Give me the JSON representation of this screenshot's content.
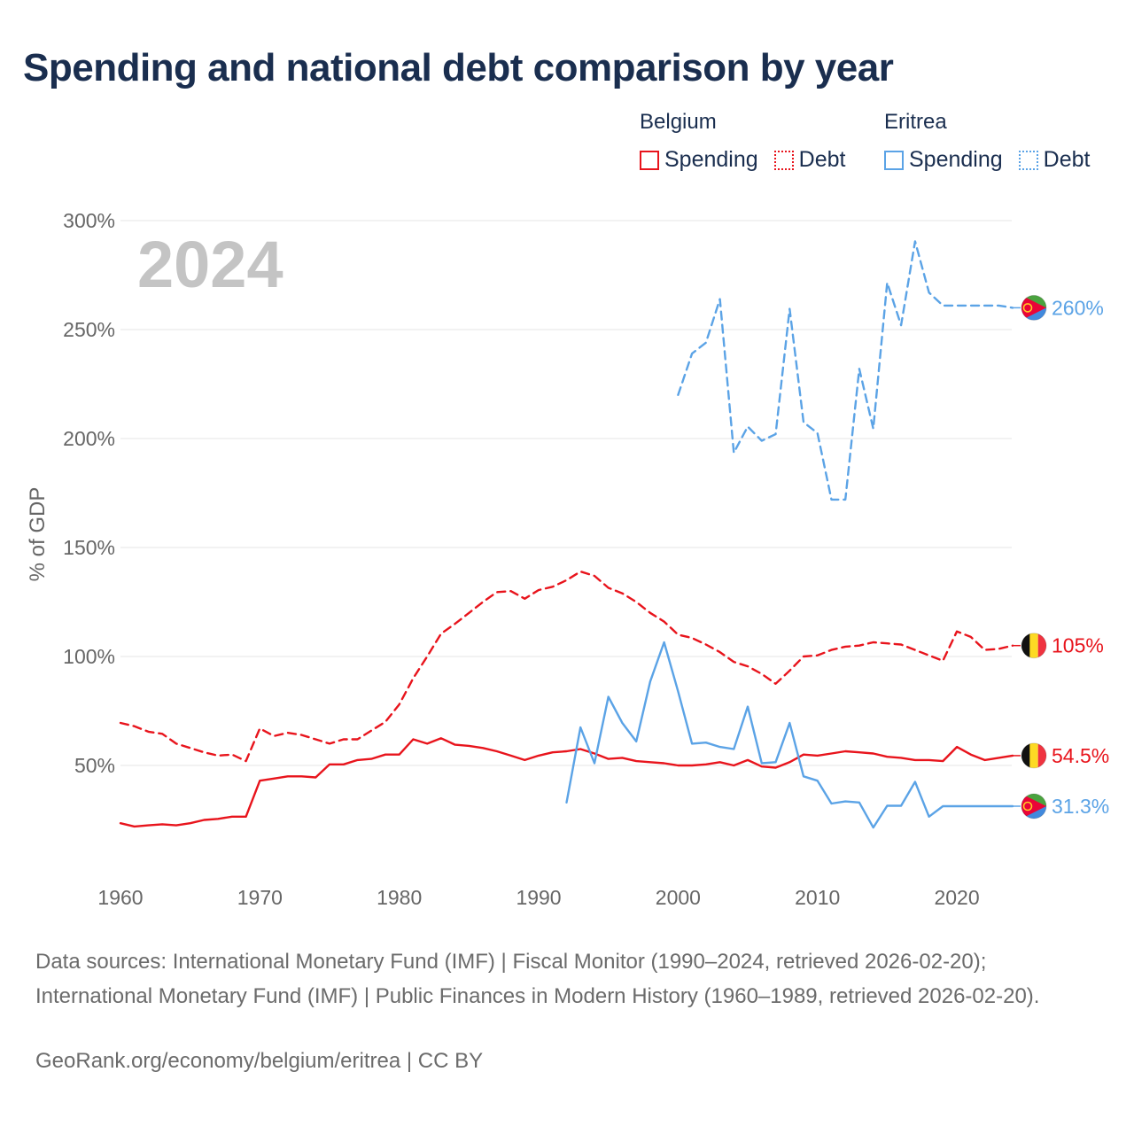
{
  "title": "Spending and national debt comparison by year",
  "legend": {
    "belgium": {
      "country": "Belgium",
      "spending": "Spending",
      "debt": "Debt"
    },
    "eritrea": {
      "country": "Eritrea",
      "spending": "Spending",
      "debt": "Debt"
    }
  },
  "colors": {
    "belgium": "#e8141c",
    "eritrea": "#5ba3e6",
    "grid": "#e4e4e4",
    "axis_text": "#666666",
    "year_watermark": "#c4c4c4"
  },
  "chart_data": {
    "type": "line",
    "year_label": "2024",
    "ylabel": "% of GDP",
    "xlim": [
      1960,
      2024
    ],
    "ylim": [
      0,
      300
    ],
    "x_ticks": [
      1960,
      1970,
      1980,
      1990,
      2000,
      2010,
      2020
    ],
    "x_tick_labels": [
      "1960",
      "1970",
      "1980",
      "1990",
      "2000",
      "2010",
      "2020"
    ],
    "y_ticks": [
      50,
      100,
      150,
      200,
      250,
      300
    ],
    "y_tick_labels": [
      "50%",
      "100%",
      "150%",
      "200%",
      "250%",
      "300%"
    ],
    "series": [
      {
        "name": "Belgium Debt",
        "country": "belgium",
        "style": "dashed",
        "x": [
          1960,
          1961,
          1962,
          1963,
          1964,
          1965,
          1966,
          1967,
          1968,
          1969,
          1970,
          1971,
          1972,
          1973,
          1974,
          1975,
          1976,
          1977,
          1978,
          1979,
          1980,
          1981,
          1982,
          1983,
          1984,
          1985,
          1986,
          1987,
          1988,
          1989,
          1990,
          1991,
          1992,
          1993,
          1994,
          1995,
          1996,
          1997,
          1998,
          1999,
          2000,
          2001,
          2002,
          2003,
          2004,
          2005,
          2006,
          2007,
          2008,
          2009,
          2010,
          2011,
          2012,
          2013,
          2014,
          2015,
          2016,
          2017,
          2018,
          2019,
          2020,
          2021,
          2022,
          2023,
          2024
        ],
        "values": [
          69.5,
          68,
          65.5,
          64.5,
          60,
          58,
          56,
          54.5,
          55,
          52,
          67,
          63.5,
          65,
          64,
          62,
          60,
          62,
          62,
          66,
          70,
          78,
          90,
          100,
          110.5,
          115,
          120,
          125,
          129.5,
          130,
          126.5,
          130.5,
          132,
          135,
          139,
          137,
          131.5,
          129,
          125,
          120,
          116,
          110,
          108.5,
          105.5,
          102,
          97.5,
          95.5,
          92,
          87.5,
          93.5,
          100,
          100.5,
          103,
          104.5,
          105,
          106.5,
          106,
          105.5,
          103,
          100.5,
          98,
          111.5,
          109,
          103,
          103.5,
          105
        ],
        "end_label": "105%",
        "end_flag": "belgium"
      },
      {
        "name": "Belgium Spending",
        "country": "belgium",
        "style": "solid",
        "x": [
          1960,
          1961,
          1962,
          1963,
          1964,
          1965,
          1966,
          1967,
          1968,
          1969,
          1970,
          1971,
          1972,
          1973,
          1974,
          1975,
          1976,
          1977,
          1978,
          1979,
          1980,
          1981,
          1982,
          1983,
          1984,
          1985,
          1986,
          1987,
          1988,
          1989,
          1990,
          1991,
          1992,
          1993,
          1994,
          1995,
          1996,
          1997,
          1998,
          1999,
          2000,
          2001,
          2002,
          2003,
          2004,
          2005,
          2006,
          2007,
          2008,
          2009,
          2010,
          2011,
          2012,
          2013,
          2014,
          2015,
          2016,
          2017,
          2018,
          2019,
          2020,
          2021,
          2022,
          2023,
          2024
        ],
        "values": [
          23.5,
          22,
          22.5,
          23,
          22.5,
          23.5,
          25,
          25.5,
          26.5,
          26.5,
          43,
          44,
          45,
          45,
          44.5,
          50.5,
          50.5,
          52.5,
          53,
          55,
          55,
          62,
          60,
          62.5,
          59.5,
          59,
          58,
          56.5,
          54.5,
          52.5,
          54.5,
          56,
          56.5,
          57.5,
          55.5,
          53,
          53.5,
          52,
          51.5,
          51,
          50,
          50,
          50.5,
          51.5,
          50,
          52.5,
          49.5,
          49,
          51.5,
          55,
          54.5,
          55.5,
          56.5,
          56,
          55.5,
          54,
          53.5,
          52.5,
          52.5,
          52,
          58.5,
          55,
          52.5,
          53.5,
          54.5
        ],
        "end_label": "54.5%",
        "end_flag": "belgium"
      },
      {
        "name": "Eritrea Debt",
        "country": "eritrea",
        "style": "dashed",
        "x": [
          2000,
          2001,
          2002,
          2003,
          2004,
          2005,
          2006,
          2007,
          2008,
          2009,
          2010,
          2011,
          2012,
          2013,
          2014,
          2015,
          2016,
          2017,
          2018,
          2019,
          2020,
          2021,
          2022,
          2023,
          2024
        ],
        "values": [
          220,
          239,
          244,
          264,
          193.5,
          205.5,
          199,
          202,
          259.5,
          207.5,
          202.5,
          172,
          172,
          232,
          204.5,
          271.5,
          252,
          290.5,
          267,
          261,
          261,
          261,
          261,
          261,
          260
        ],
        "end_label": "260%",
        "end_flag": "eritrea"
      },
      {
        "name": "Eritrea Spending",
        "country": "eritrea",
        "style": "solid",
        "x": [
          1992,
          1993,
          1994,
          1995,
          1996,
          1997,
          1998,
          1999,
          2000,
          2001,
          2002,
          2003,
          2004,
          2005,
          2006,
          2007,
          2008,
          2009,
          2010,
          2011,
          2012,
          2013,
          2014,
          2015,
          2016,
          2017,
          2018,
          2019,
          2020,
          2021,
          2022,
          2023,
          2024
        ],
        "values": [
          33,
          67.5,
          51,
          81.5,
          69.5,
          61,
          88.5,
          106.5,
          84,
          60,
          60.5,
          58.5,
          57.5,
          77,
          51,
          51.5,
          69.5,
          45,
          43,
          32.5,
          33.5,
          33,
          21.5,
          31.5,
          31.5,
          42.5,
          26.5,
          31.3,
          31.3,
          31.3,
          31.3,
          31.3,
          31.3
        ],
        "end_label": "31.3%",
        "end_flag": "eritrea"
      }
    ]
  },
  "sources_text": "Data sources: International Monetary Fund (IMF) | Fiscal Monitor (1990–2024, retrieved 2026-02-20); International Monetary Fund (IMF) | Public Finances in Modern History (1960–1989, retrieved 2026-02-20).",
  "credit_text": "GeoRank.org/economy/belgium/eritrea | CC BY"
}
